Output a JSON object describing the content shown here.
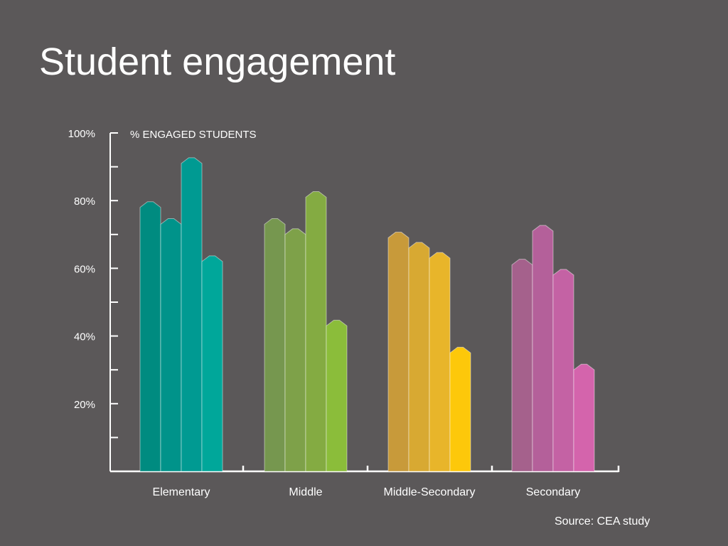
{
  "page": {
    "title": "Student engagement",
    "source": "Source: CEA study"
  },
  "chart_data": {
    "type": "bar",
    "title": "Student engagement",
    "ylabel": "% ENGAGED STUDENTS",
    "ylim": [
      0,
      100
    ],
    "ytick_labels": [
      "100%",
      "80%",
      "60%",
      "40%",
      "20%"
    ],
    "yticks": [
      100,
      80,
      60,
      40,
      20
    ],
    "categories": [
      "Elementary",
      "Middle",
      "Middle-Secondary",
      "Secondary"
    ],
    "groups": [
      {
        "category": "Elementary",
        "values": [
          78,
          73,
          91,
          62
        ],
        "colors": [
          "#008b80",
          "#00938a",
          "#009a92",
          "#00a79a"
        ]
      },
      {
        "category": "Middle",
        "values": [
          73,
          70,
          81,
          43
        ],
        "colors": [
          "#76974f",
          "#7ea149",
          "#84ab42",
          "#8bbd3a"
        ]
      },
      {
        "category": "Middle-Secondary",
        "values": [
          69,
          66,
          63,
          35
        ],
        "colors": [
          "#c89a3a",
          "#d8a932",
          "#e8b52a",
          "#fdc80a"
        ]
      },
      {
        "category": "Secondary",
        "values": [
          61,
          71,
          58,
          30
        ],
        "colors": [
          "#a5618c",
          "#b4609a",
          "#c462a4",
          "#d464ac"
        ]
      }
    ],
    "grid": false,
    "legend": "none"
  }
}
